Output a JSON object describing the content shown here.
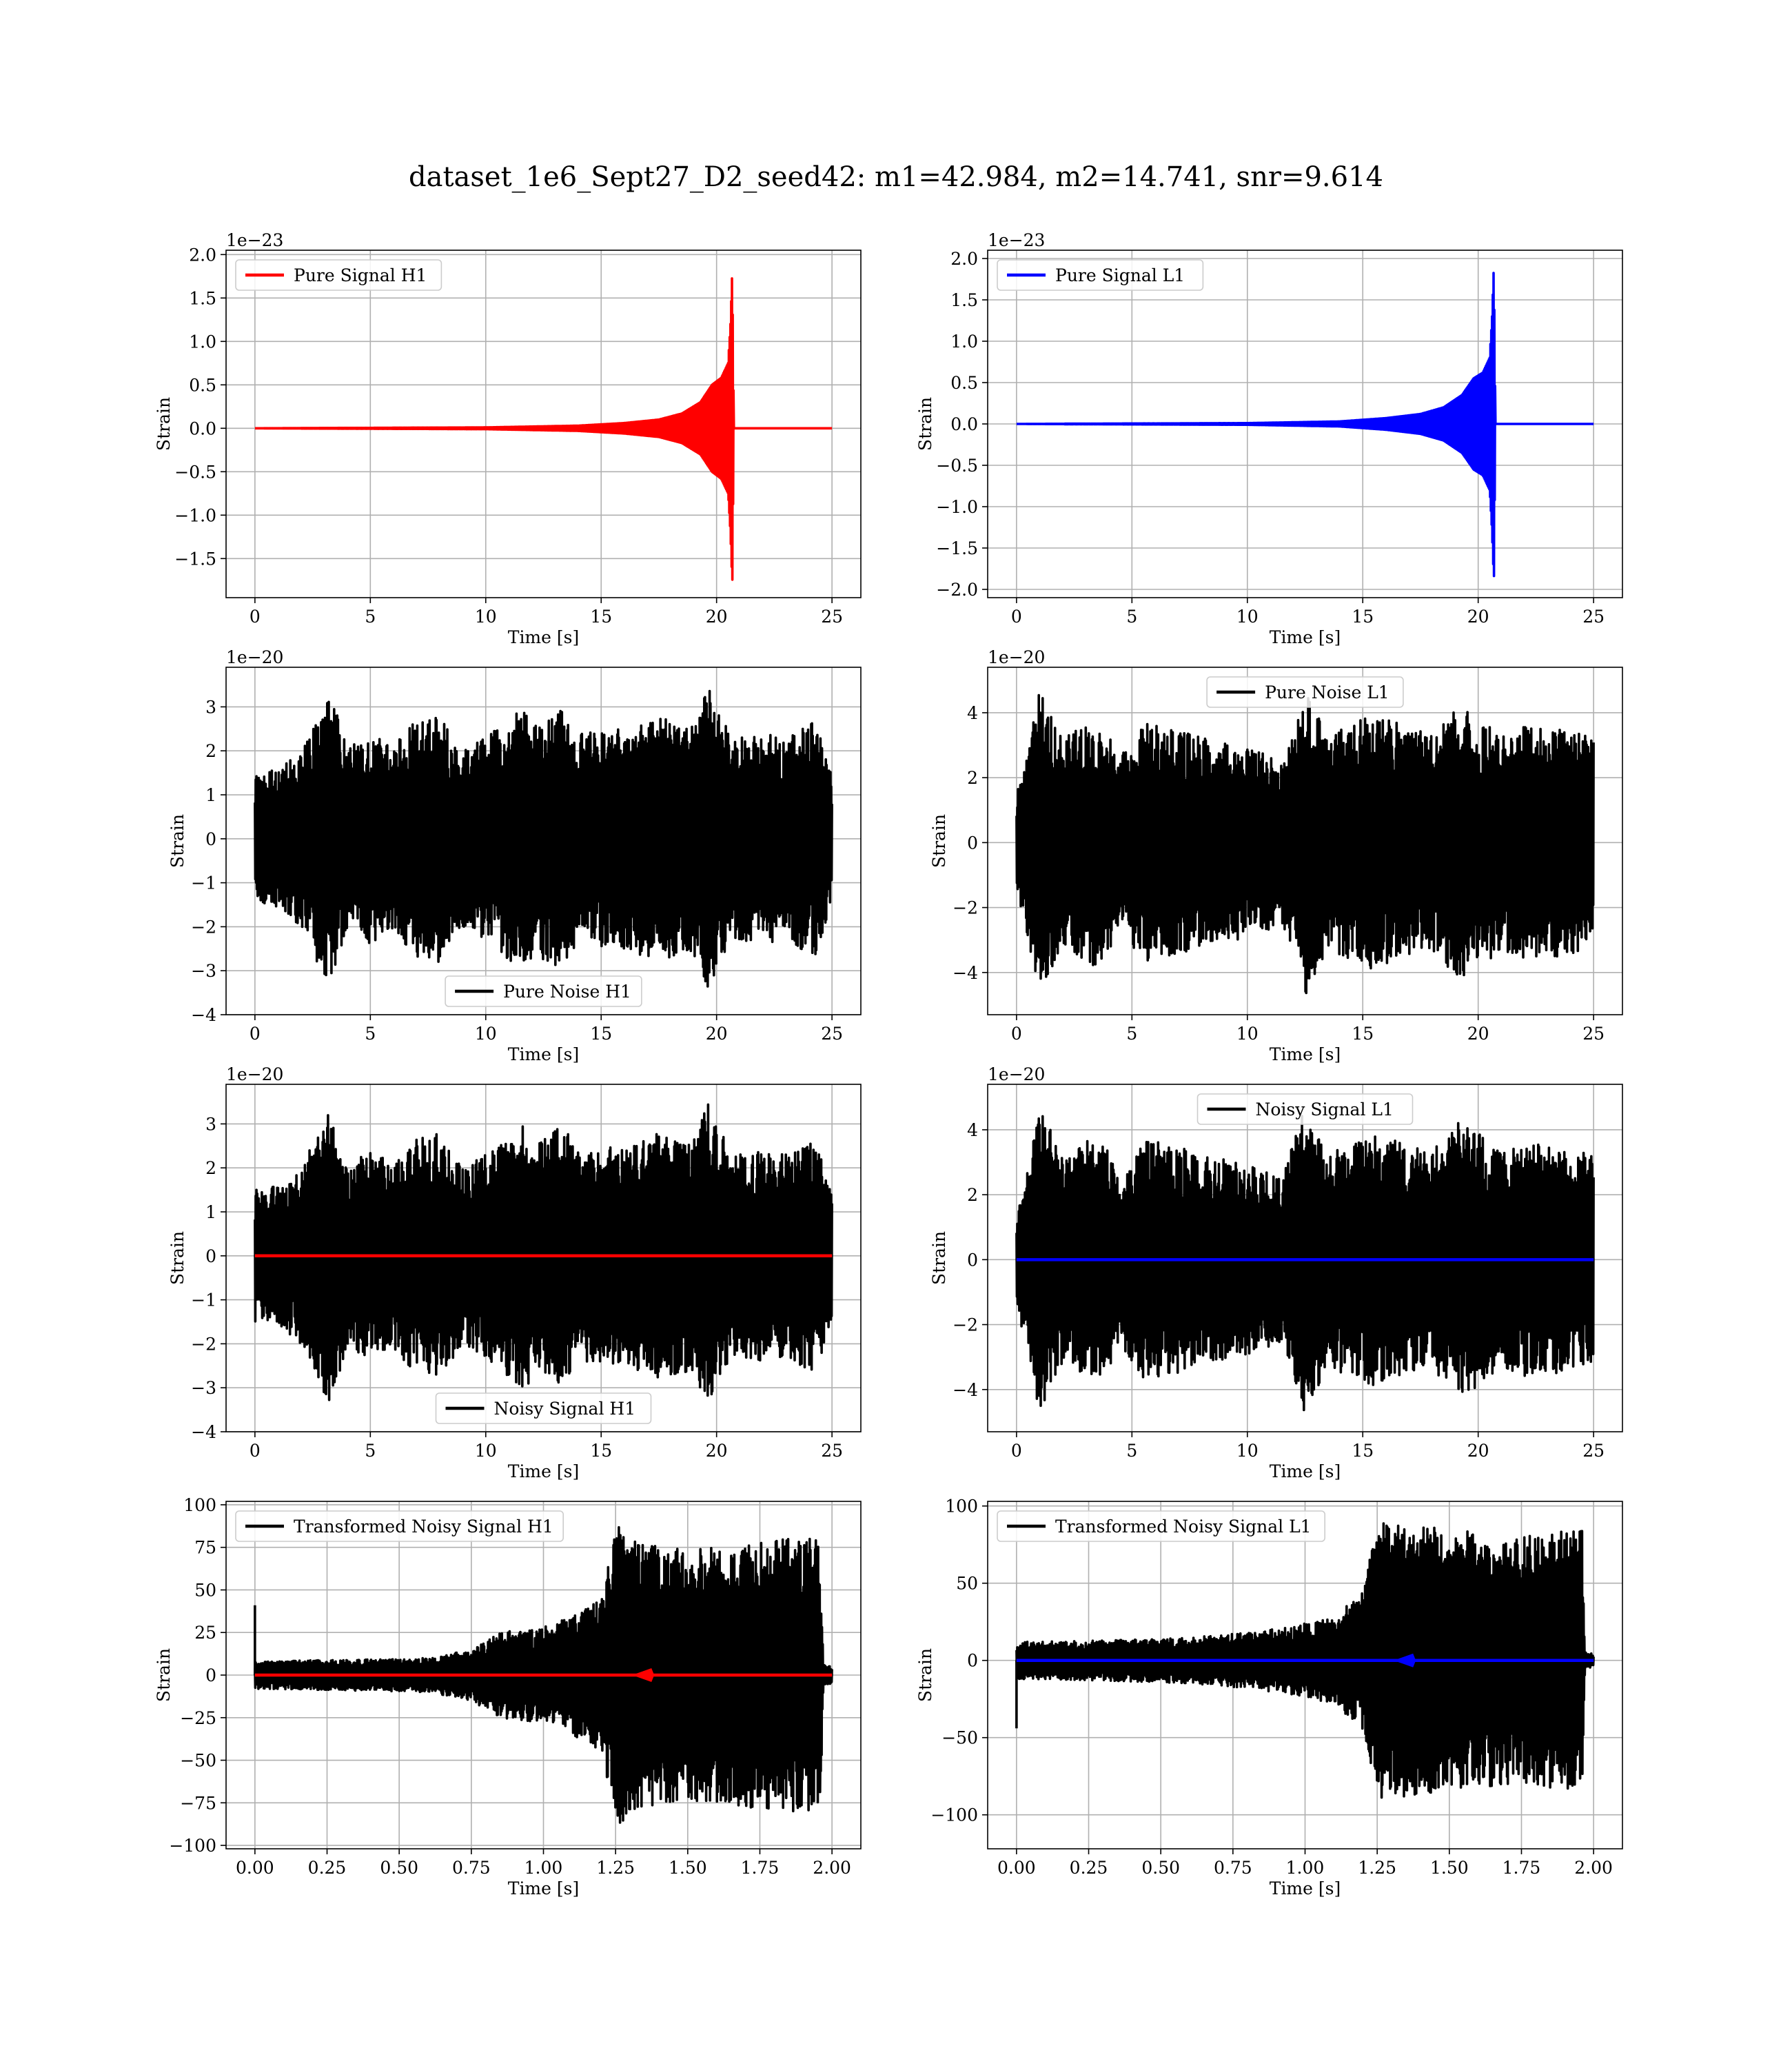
{
  "figure": {
    "title": "dataset_1e6_Sept27_D2_seed42: m1=42.984, m2=14.741, snr=9.614"
  },
  "chart_data": [
    {
      "id": "pure-signal-h1",
      "type": "line",
      "kind": "chirp",
      "xlabel": "Time [s]",
      "ylabel": "Strain",
      "offset_text": "1e−23",
      "xlim": [
        -1.25,
        26.25
      ],
      "ylim": [
        -1.95,
        2.05
      ],
      "xticks": [
        0,
        5,
        10,
        15,
        20,
        25
      ],
      "xtick_labels": [
        "0",
        "5",
        "10",
        "15",
        "20",
        "25"
      ],
      "yticks": [
        -1.5,
        -1.0,
        -0.5,
        0.0,
        0.5,
        1.0,
        1.5,
        2.0
      ],
      "ytick_labels": [
        "−1.5",
        "−1.0",
        "−0.5",
        "0.0",
        "0.5",
        "1.0",
        "1.5",
        "2.0"
      ],
      "legend_loc": "upper-left",
      "series": [
        {
          "name": "Pure Signal H1",
          "color": "#ff0000",
          "envelope": {
            "t": [
              0,
              10,
              14,
              16,
              17.5,
              18.5,
              19.3,
              19.8,
              20.2,
              20.5,
              20.6,
              20.68,
              20.75,
              25
            ],
            "a": [
              0,
              0.01,
              0.03,
              0.06,
              0.1,
              0.17,
              0.3,
              0.5,
              0.58,
              0.75,
              1.2,
              1.83,
              0,
              0
            ]
          }
        }
      ]
    },
    {
      "id": "pure-signal-l1",
      "type": "line",
      "kind": "chirp",
      "xlabel": "Time [s]",
      "ylabel": "Strain",
      "offset_text": "1e−23",
      "xlim": [
        -1.25,
        26.25
      ],
      "ylim": [
        -2.1,
        2.1
      ],
      "xticks": [
        0,
        5,
        10,
        15,
        20,
        25
      ],
      "xtick_labels": [
        "0",
        "5",
        "10",
        "15",
        "20",
        "25"
      ],
      "yticks": [
        -2.0,
        -1.5,
        -1.0,
        -0.5,
        0.0,
        0.5,
        1.0,
        1.5,
        2.0
      ],
      "ytick_labels": [
        "−2.0",
        "−1.5",
        "−1.0",
        "−0.5",
        "0.0",
        "0.5",
        "1.0",
        "1.5",
        "2.0"
      ],
      "legend_loc": "upper-left",
      "series": [
        {
          "name": "Pure Signal L1",
          "color": "#0000ff",
          "envelope": {
            "t": [
              0,
              10,
              14,
              16,
              17.5,
              18.5,
              19.3,
              19.8,
              20.2,
              20.5,
              20.6,
              20.68,
              20.75,
              25
            ],
            "a": [
              0,
              0.01,
              0.03,
              0.07,
              0.12,
              0.2,
              0.35,
              0.55,
              0.62,
              0.8,
              1.3,
              1.93,
              0,
              0
            ]
          }
        }
      ]
    },
    {
      "id": "pure-noise-h1",
      "type": "line",
      "kind": "noise",
      "xlabel": "Time [s]",
      "ylabel": "Strain",
      "offset_text": "1e−20",
      "xlim": [
        -1.25,
        26.25
      ],
      "ylim": [
        -4.0,
        3.9
      ],
      "xticks": [
        0,
        5,
        10,
        15,
        20,
        25
      ],
      "xtick_labels": [
        "0",
        "5",
        "10",
        "15",
        "20",
        "25"
      ],
      "yticks": [
        -4,
        -3,
        -2,
        -1,
        0,
        1,
        2,
        3
      ],
      "ytick_labels": [
        "−4",
        "−3",
        "−2",
        "−1",
        "0",
        "1",
        "2",
        "3"
      ],
      "legend_loc": "lower-center",
      "series": [
        {
          "name": "Pure Noise H1",
          "color": "#000000",
          "envelope": {
            "t": [
              0,
              1,
              2,
              3.2,
              4,
              5,
              6,
              7,
              8,
              9,
              10,
              11.8,
              12,
              13.3,
              14,
              16,
              17.5,
              19,
              19.7,
              20,
              21,
              22,
              23,
              24.3,
              25
            ],
            "a": [
              1.5,
              1.6,
              2.0,
              3.4,
              2.1,
              2.4,
              2.1,
              2.7,
              2.8,
              2.0,
              2.3,
              3.1,
              2.6,
              3.0,
              2.4,
              2.5,
              2.8,
              2.6,
              3.6,
              2.9,
              2.3,
              2.4,
              2.3,
              2.7,
              1.4
            ]
          }
        }
      ]
    },
    {
      "id": "pure-noise-l1",
      "type": "line",
      "kind": "noise",
      "xlabel": "Time [s]",
      "ylabel": "Strain",
      "offset_text": "1e−20",
      "xlim": [
        -1.25,
        26.25
      ],
      "ylim": [
        -5.3,
        5.4
      ],
      "xticks": [
        0,
        5,
        10,
        15,
        20,
        25
      ],
      "xtick_labels": [
        "0",
        "5",
        "10",
        "15",
        "20",
        "25"
      ],
      "yticks": [
        -4,
        -2,
        0,
        2,
        4
      ],
      "ytick_labels": [
        "−4",
        "−2",
        "0",
        "2",
        "4"
      ],
      "legend_loc": "upper-center",
      "series": [
        {
          "name": "Pure Noise L1",
          "color": "#000000",
          "envelope": {
            "t": [
              0,
              0.5,
              1,
              2,
              3.5,
              4.5,
              5.5,
              7,
              8,
              9.5,
              10.5,
              11.5,
              12.5,
              13.5,
              14.5,
              15.5,
              17,
              18,
              19,
              20,
              21,
              22,
              23.5,
              25
            ],
            "a": [
              1.5,
              3.0,
              4.7,
              3.2,
              3.9,
              2.7,
              3.7,
              3.5,
              3.3,
              3.0,
              2.8,
              2.5,
              4.8,
              3.2,
              3.7,
              3.9,
              3.6,
              3.3,
              4.3,
              3.9,
              3.3,
              3.6,
              3.5,
              3.3
            ]
          }
        }
      ]
    },
    {
      "id": "noisy-signal-h1",
      "type": "line",
      "kind": "noise",
      "xlabel": "Time [s]",
      "ylabel": "Strain",
      "offset_text": "1e−20",
      "xlim": [
        -1.25,
        26.25
      ],
      "ylim": [
        -4.0,
        3.9
      ],
      "xticks": [
        0,
        5,
        10,
        15,
        20,
        25
      ],
      "xtick_labels": [
        "0",
        "5",
        "10",
        "15",
        "20",
        "25"
      ],
      "yticks": [
        -4,
        -3,
        -2,
        -1,
        0,
        1,
        2,
        3
      ],
      "ytick_labels": [
        "−4",
        "−3",
        "−2",
        "−1",
        "0",
        "1",
        "2",
        "3"
      ],
      "legend_loc": "lower-center",
      "series": [
        {
          "name": "Noisy Signal H1",
          "color": "#000000",
          "envelope": {
            "t": [
              0,
              1,
              2,
              3.2,
              4,
              5,
              6,
              7,
              8,
              9,
              10,
              11.8,
              12,
              13.3,
              14,
              16,
              17.5,
              19,
              19.7,
              20,
              21,
              22,
              23,
              24.3,
              25
            ],
            "a": [
              1.5,
              1.6,
              2.0,
              3.4,
              2.1,
              2.4,
              2.1,
              2.7,
              2.8,
              2.0,
              2.3,
              3.1,
              2.6,
              3.0,
              2.4,
              2.5,
              2.8,
              2.6,
              3.6,
              2.9,
              2.3,
              2.4,
              2.3,
              2.7,
              1.4
            ]
          }
        },
        {
          "color": "#ff0000",
          "flat": 0
        }
      ]
    },
    {
      "id": "noisy-signal-l1",
      "type": "line",
      "kind": "noise",
      "xlabel": "Time [s]",
      "ylabel": "Strain",
      "offset_text": "1e−20",
      "xlim": [
        -1.25,
        26.25
      ],
      "ylim": [
        -5.3,
        5.4
      ],
      "xticks": [
        0,
        5,
        10,
        15,
        20,
        25
      ],
      "xtick_labels": [
        "0",
        "5",
        "10",
        "15",
        "20",
        "25"
      ],
      "yticks": [
        -4,
        -2,
        0,
        2,
        4
      ],
      "ytick_labels": [
        "−4",
        "−2",
        "0",
        "2",
        "4"
      ],
      "legend_loc": "upper-center",
      "series": [
        {
          "name": "Noisy Signal L1",
          "color": "#000000",
          "envelope": {
            "t": [
              0,
              0.5,
              1,
              2,
              3.5,
              4.5,
              5.5,
              7,
              8,
              9.5,
              10.5,
              11.5,
              12.5,
              13.5,
              14.5,
              15.5,
              17,
              18,
              19,
              20,
              21,
              22,
              23.5,
              25
            ],
            "a": [
              1.5,
              3.0,
              4.7,
              3.2,
              3.9,
              2.7,
              3.7,
              3.5,
              3.3,
              3.0,
              2.8,
              2.5,
              4.8,
              3.2,
              3.7,
              3.9,
              3.6,
              3.3,
              4.3,
              3.9,
              3.3,
              3.6,
              3.5,
              3.3
            ]
          }
        },
        {
          "color": "#0000ff",
          "flat": 0
        }
      ]
    },
    {
      "id": "transformed-noisy-signal-h1",
      "type": "line",
      "kind": "transformed",
      "xlabel": "Time [s]",
      "ylabel": "Strain",
      "offset_text": "",
      "xlim": [
        -0.1,
        2.1
      ],
      "ylim": [
        -102,
        102
      ],
      "xticks": [
        0,
        0.25,
        0.5,
        0.75,
        1.0,
        1.25,
        1.5,
        1.75,
        2.0
      ],
      "xtick_labels": [
        "0.00",
        "0.25",
        "0.50",
        "0.75",
        "1.00",
        "1.25",
        "1.50",
        "1.75",
        "2.00"
      ],
      "yticks": [
        -100,
        -75,
        -50,
        -25,
        0,
        25,
        50,
        75,
        100
      ],
      "ytick_labels": [
        "−100",
        "−75",
        "−50",
        "−25",
        "0",
        "25",
        "50",
        "75",
        "100"
      ],
      "legend_loc": "upper-left",
      "series": [
        {
          "name": "Transformed Noisy Signal H1",
          "color": "#000000",
          "envelope": {
            "t": [
              0,
              0.3,
              0.6,
              0.75,
              0.85,
              1.0,
              1.1,
              1.2,
              1.25,
              1.4,
              1.6,
              1.8,
              1.96,
              1.97,
              2.0
            ],
            "a": [
              8,
              9,
              10,
              15,
              25,
              28,
              35,
              45,
              90,
              75,
              75,
              80,
              80,
              6,
              5
            ]
          },
          "spike": {
            "t": 0.0,
            "v": 41
          }
        },
        {
          "color": "#ff0000",
          "flat": 0,
          "marker_t": 1.36
        }
      ]
    },
    {
      "id": "transformed-noisy-signal-l1",
      "type": "line",
      "kind": "transformed",
      "xlabel": "Time [s]",
      "ylabel": "Strain",
      "offset_text": "",
      "xlim": [
        -0.1,
        2.1
      ],
      "ylim": [
        -122,
        103
      ],
      "xticks": [
        0,
        0.25,
        0.5,
        0.75,
        1.0,
        1.25,
        1.5,
        1.75,
        2.0
      ],
      "xtick_labels": [
        "0.00",
        "0.25",
        "0.50",
        "0.75",
        "1.00",
        "1.25",
        "1.50",
        "1.75",
        "2.00"
      ],
      "yticks": [
        -100,
        -50,
        0,
        50,
        100
      ],
      "ytick_labels": [
        "−100",
        "−50",
        "0",
        "50",
        "100"
      ],
      "legend_loc": "upper-left",
      "series": [
        {
          "name": "Transformed Noisy Signal L1",
          "color": "#000000",
          "envelope": {
            "t": [
              0,
              0.3,
              0.6,
              0.8,
              0.95,
              1.1,
              1.2,
              1.25,
              1.5,
              1.75,
              1.96,
              1.97,
              2.0
            ],
            "a": [
              12,
              13,
              15,
              18,
              22,
              28,
              45,
              90,
              85,
              80,
              85,
              6,
              4
            ]
          },
          "spike": {
            "t": 0.0,
            "v": -44
          }
        },
        {
          "color": "#0000ff",
          "flat": 0,
          "marker_t": 1.36
        }
      ]
    }
  ]
}
